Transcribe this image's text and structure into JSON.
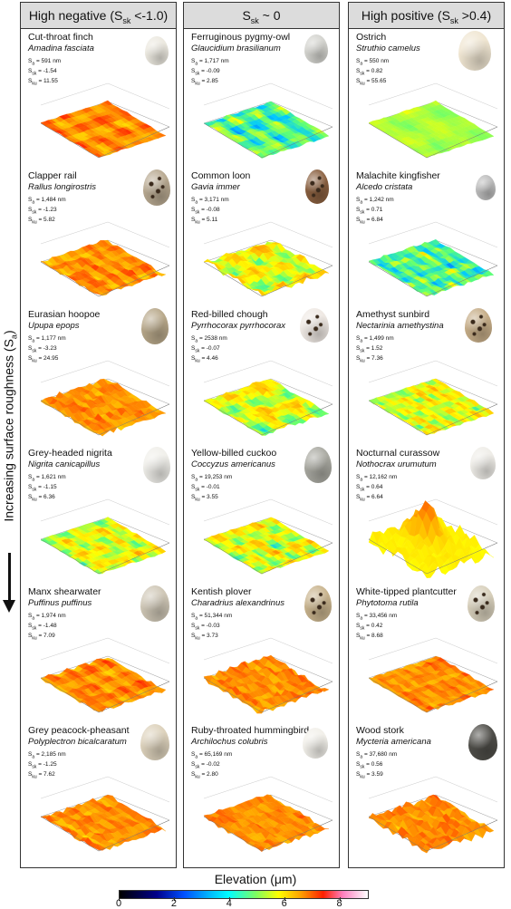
{
  "side_label": {
    "text": "Increasing surface roughness (S",
    "sub": "a",
    "close": ")"
  },
  "columns": [
    {
      "header": {
        "pre": "High negative (S",
        "sub": "sk",
        "post": " <-1.0)"
      },
      "panels": [
        {
          "name": "Cut-throat finch",
          "sci": "Amadina fasciata",
          "sa": "= 591 nm",
          "ssk": "= -1.54",
          "sku": "= 11.55",
          "egg_color": "#ece9e0",
          "egg_spots": false
        },
        {
          "name": "Clapper rail",
          "sci": "Rallus longirostris",
          "sa": "= 1,484 nm",
          "ssk": "= -1.23",
          "sku": "= 5.82",
          "egg_color": "#b8a991",
          "egg_spots": true
        },
        {
          "name": "Eurasian hoopoe",
          "sci": "Upupa epops",
          "sa": "= 1,177 nm",
          "ssk": "= -3.23",
          "sku": "= 24.95",
          "egg_color": "#b8a88a",
          "egg_spots": false
        },
        {
          "name": "Grey-headed nigrita",
          "sci": "Nigrita canicapillus",
          "sa": "= 1,621 nm",
          "ssk": "= -1.15",
          "sku": "= 6.36",
          "egg_color": "#f0efea",
          "egg_spots": false
        },
        {
          "name": "Manx shearwater",
          "sci": "Puffinus puffinus",
          "sa": "= 1,974 nm",
          "ssk": "= -1.48",
          "sku": "= 7.09",
          "egg_color": "#cfc7b6",
          "egg_spots": false
        },
        {
          "name": "Grey peacock-pheasant",
          "sci": "Polyplectron bicalcaratum",
          "sa": "= 2,185 nm",
          "ssk": "= -1.25",
          "sku": "= 7.62",
          "egg_color": "#ddd2bc",
          "egg_spots": false
        }
      ]
    },
    {
      "header": {
        "pre": "S",
        "sub": "sk",
        "post": " ~ 0"
      },
      "panels": [
        {
          "name": "Ferruginous pygmy-owl",
          "sci": "Glaucidium brasilianum",
          "sa": "= 1,717 nm",
          "ssk": "= -0.09",
          "sku": "= 2.85",
          "egg_color": "#d4d4cf",
          "egg_spots": false
        },
        {
          "name": "Common loon",
          "sci": "Gavia immer",
          "sa": "= 3,171 nm",
          "ssk": "= -0.08",
          "sku": "= 5.11",
          "egg_color": "#8a6040",
          "egg_spots": true
        },
        {
          "name": "Red-billed chough",
          "sci": "Pyrrhocorax pyrrhocorax",
          "sa": "= 2538 nm",
          "ssk": "= -0.07",
          "sku": "= 4.46",
          "egg_color": "#efe9e4",
          "egg_spots": true
        },
        {
          "name": "Yellow-billed cuckoo",
          "sci": "Coccyzus americanus",
          "sa": "= 19,253 nm",
          "ssk": "= -0.01",
          "sku": "= 3.55",
          "egg_color": "#a9a9a1",
          "egg_spots": false
        },
        {
          "name": "Kentish plover",
          "sci": "Charadrius alexandrinus",
          "sa": "= 51,344 nm",
          "ssk": "= -0.03",
          "sku": "= 3.73",
          "egg_color": "#c9b48e",
          "egg_spots": true
        },
        {
          "name": "Ruby-throated hummingbird",
          "sci": "Archilochus colubris",
          "sa": "= 65,169 nm",
          "ssk": "= -0.02",
          "sku": "= 2.80",
          "egg_color": "#f2f0ea",
          "egg_spots": false
        }
      ]
    },
    {
      "header": {
        "pre": "High positive (S",
        "sub": "sk",
        "post": " >0.4)"
      },
      "panels": [
        {
          "name": "Ostrich",
          "sci": "Struthio camelus",
          "sa": "= 550 nm",
          "ssk": "= 0.82",
          "sku": "= 55.65",
          "egg_color": "#f0e6d2",
          "egg_spots": false
        },
        {
          "name": "Malachite kingfisher",
          "sci": "Alcedo cristata",
          "sa": "= 1,242 nm",
          "ssk": "= 0.71",
          "sku": "= 6.84",
          "egg_color": "#bcbcbc",
          "egg_spots": false
        },
        {
          "name": "Amethyst sunbird",
          "sci": "Nectarinia amethystina",
          "sa": "= 1,499 nm",
          "ssk": "= 1.52",
          "sku": "= 7.36",
          "egg_color": "#c6ad88",
          "egg_spots": true
        },
        {
          "name": "Nocturnal curassow",
          "sci": "Nothocrax urumutum",
          "sa": "= 12,162 nm",
          "ssk": "= 0.64",
          "sku": "= 6.64",
          "egg_color": "#efede8",
          "egg_spots": false
        },
        {
          "name": "White-tipped plantcutter",
          "sci": "Phytotoma rutila",
          "sa": "= 33,456 nm",
          "ssk": "= 0.42",
          "sku": "= 8.68",
          "egg_color": "#d8d0bc",
          "egg_spots": true
        },
        {
          "name": "Wood stork",
          "sci": "Mycteria americana",
          "sa": "= 37,680 nm",
          "ssk": "= 0.56",
          "sku": "= 3.59",
          "egg_color": "#4f4e49",
          "egg_spots": false
        }
      ]
    }
  ],
  "legend": {
    "title": "Elevation (μm)",
    "ticks": [
      "0",
      "2",
      "4",
      "6",
      "8"
    ]
  }
}
